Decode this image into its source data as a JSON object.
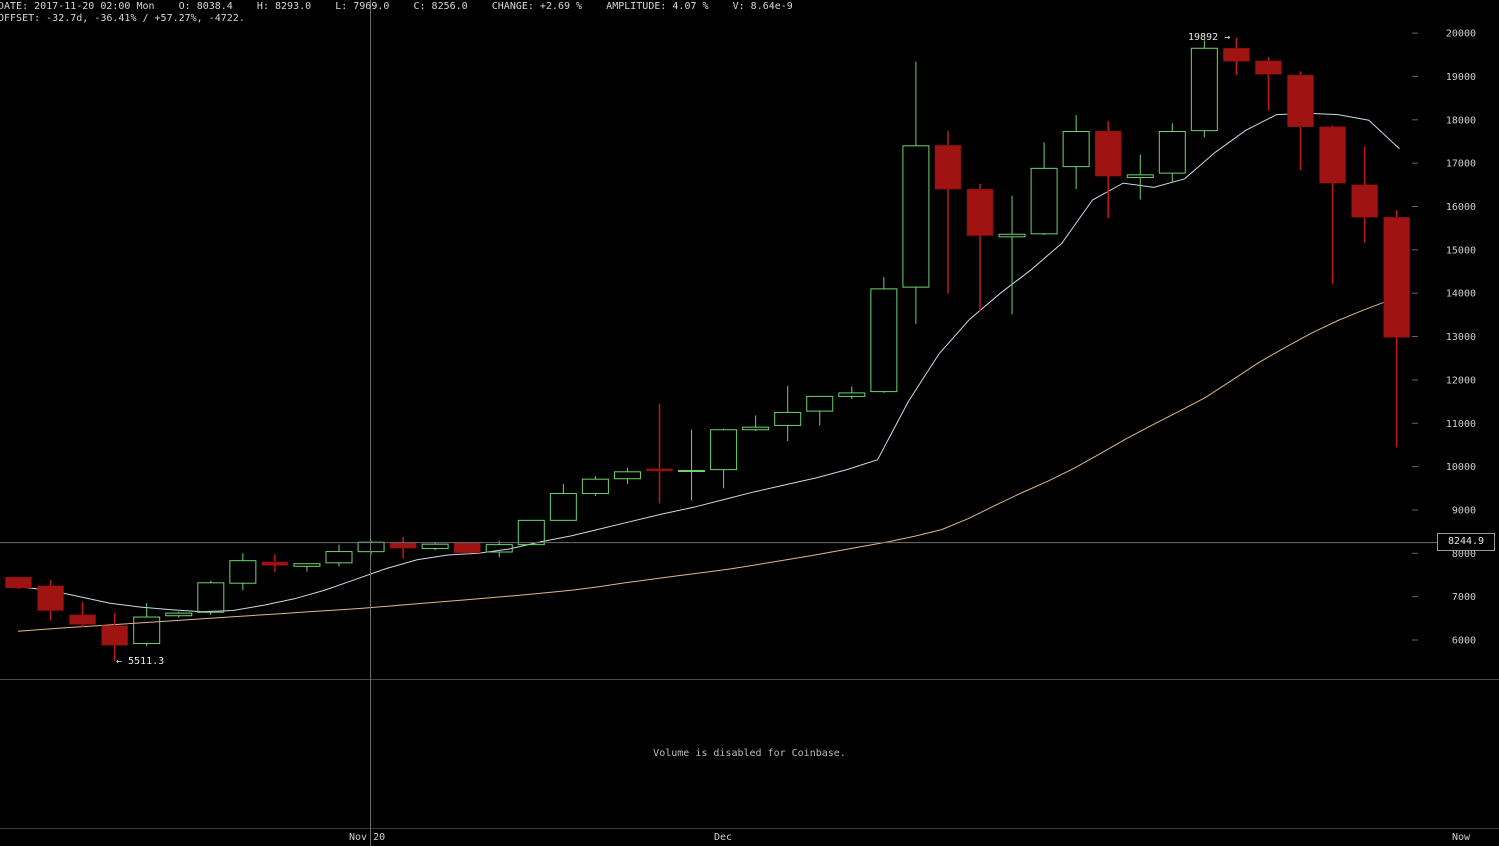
{
  "info": {
    "date": "DATE: 2017-11-20 02:00 Mon",
    "open": "O: 8038.4",
    "high": "H: 8293.0",
    "low": "L: 7969.0",
    "close": "C: 8256.0",
    "change": "CHANGE: +2.69 %",
    "amplitude": "AMPLITUDE: 4.07 %",
    "volume": "V: 8.64e-9",
    "offset": "OFFSET: -32.7d, -36.41% / +57.27%, -4722."
  },
  "crosshair_price": "8244.9",
  "crosshair_price_value": 8244.9,
  "volume_message": "Volume is disabled for Coinbase.",
  "annotations": {
    "high_label": "19892 →",
    "low_label": "← 5511.3"
  },
  "x_axis": {
    "label_nov20": "Nov 20",
    "label_dec": "Dec",
    "label_now": "Now"
  },
  "colors": {
    "background": "#000000",
    "up": "#6fd36f",
    "down": "#a01313",
    "ma_short": "#c8dbe8",
    "ma_long": "#e0b78a",
    "grid": "#555555"
  },
  "chart_data": {
    "type": "candlestick",
    "y_ticks": [
      6000,
      7000,
      8000,
      9000,
      10000,
      11000,
      12000,
      13000,
      14000,
      15000,
      16000,
      17000,
      18000,
      19000,
      20000
    ],
    "y_tick_labels": [
      "6000",
      "7000",
      "8000",
      "9000",
      "10000",
      "11000",
      "12000",
      "13000",
      "14000",
      "15000",
      "16000",
      "17000",
      "18000",
      "19000",
      "20000"
    ],
    "candles": [
      {
        "o": 7450,
        "h": 7450,
        "l": 7180,
        "c": 7200
      },
      {
        "o": 7250,
        "h": 7380,
        "l": 6450,
        "c": 6680
      },
      {
        "o": 6580,
        "h": 6880,
        "l": 6300,
        "c": 6360
      },
      {
        "o": 6330,
        "h": 6620,
        "l": 5511,
        "c": 5880
      },
      {
        "o": 5920,
        "h": 6850,
        "l": 5860,
        "c": 6530
      },
      {
        "o": 6560,
        "h": 6650,
        "l": 6520,
        "c": 6620
      },
      {
        "o": 6640,
        "h": 7370,
        "l": 6580,
        "c": 7320
      },
      {
        "o": 7310,
        "h": 8000,
        "l": 7150,
        "c": 7830
      },
      {
        "o": 7800,
        "h": 7980,
        "l": 7570,
        "c": 7720
      },
      {
        "o": 7700,
        "h": 7770,
        "l": 7580,
        "c": 7760
      },
      {
        "o": 7780,
        "h": 8200,
        "l": 7700,
        "c": 8040
      },
      {
        "o": 8038,
        "h": 8293,
        "l": 7969,
        "c": 8256
      },
      {
        "o": 8240,
        "h": 8380,
        "l": 7880,
        "c": 8120
      },
      {
        "o": 8110,
        "h": 8260,
        "l": 8070,
        "c": 8210
      },
      {
        "o": 8240,
        "h": 8260,
        "l": 7990,
        "c": 8010
      },
      {
        "o": 8030,
        "h": 8290,
        "l": 7910,
        "c": 8200
      },
      {
        "o": 8200,
        "h": 8770,
        "l": 8190,
        "c": 8760
      },
      {
        "o": 8760,
        "h": 9600,
        "l": 8750,
        "c": 9380
      },
      {
        "o": 9380,
        "h": 9780,
        "l": 9320,
        "c": 9710
      },
      {
        "o": 9720,
        "h": 9970,
        "l": 9600,
        "c": 9880
      },
      {
        "o": 9950,
        "h": 11450,
        "l": 9150,
        "c": 9900
      },
      {
        "o": 9900,
        "h": 10850,
        "l": 9220,
        "c": 9910
      },
      {
        "o": 9930,
        "h": 10880,
        "l": 9500,
        "c": 10850
      },
      {
        "o": 10850,
        "h": 11180,
        "l": 10820,
        "c": 10910
      },
      {
        "o": 10950,
        "h": 11860,
        "l": 10590,
        "c": 11250
      },
      {
        "o": 11280,
        "h": 11620,
        "l": 10950,
        "c": 11620
      },
      {
        "o": 11620,
        "h": 11850,
        "l": 11560,
        "c": 11700
      },
      {
        "o": 11730,
        "h": 14370,
        "l": 11700,
        "c": 14100
      },
      {
        "o": 14140,
        "h": 19340,
        "l": 13290,
        "c": 17400
      },
      {
        "o": 17410,
        "h": 17750,
        "l": 13990,
        "c": 16400
      },
      {
        "o": 16400,
        "h": 16520,
        "l": 13580,
        "c": 15330
      },
      {
        "o": 15300,
        "h": 16250,
        "l": 13510,
        "c": 15360
      },
      {
        "o": 15370,
        "h": 17480,
        "l": 15340,
        "c": 16880
      },
      {
        "o": 16920,
        "h": 18110,
        "l": 16400,
        "c": 17730
      },
      {
        "o": 17740,
        "h": 17970,
        "l": 15730,
        "c": 16700
      },
      {
        "o": 16670,
        "h": 17200,
        "l": 16160,
        "c": 16730
      },
      {
        "o": 16770,
        "h": 17920,
        "l": 16570,
        "c": 17730
      },
      {
        "o": 17750,
        "h": 19830,
        "l": 17600,
        "c": 19650
      },
      {
        "o": 19650,
        "h": 19892,
        "l": 19030,
        "c": 19350
      },
      {
        "o": 19360,
        "h": 19450,
        "l": 18220,
        "c": 19050
      },
      {
        "o": 19030,
        "h": 19120,
        "l": 16840,
        "c": 17840
      },
      {
        "o": 17840,
        "h": 17870,
        "l": 14210,
        "c": 16540
      },
      {
        "o": 16500,
        "h": 17380,
        "l": 15160,
        "c": 15750
      },
      {
        "o": 15750,
        "h": 15920,
        "l": 10450,
        "c": 12980
      }
    ],
    "ma_short": [
      7230,
      7150,
      7000,
      6850,
      6760,
      6700,
      6650,
      6680,
      6800,
      6950,
      7150,
      7400,
      7650,
      7850,
      7960,
      8000,
      8100,
      8260,
      8400,
      8570,
      8740,
      8910,
      9060,
      9240,
      9420,
      9580,
      9740,
      9930,
      10160,
      11500,
      12600,
      13400,
      14000,
      14540,
      15150,
      16150,
      16540,
      16440,
      16640,
      17250,
      17760,
      18120,
      18150,
      18120,
      17990,
      17330
    ],
    "ma_long": [
      6200,
      6250,
      6290,
      6330,
      6370,
      6410,
      6450,
      6490,
      6530,
      6570,
      6610,
      6650,
      6690,
      6730,
      6780,
      6830,
      6880,
      6930,
      6980,
      7030,
      7090,
      7150,
      7230,
      7320,
      7400,
      7480,
      7560,
      7640,
      7740,
      7840,
      7940,
      8050,
      8160,
      8270,
      8400,
      8550,
      8800,
      9100,
      9390,
      9660,
      9960,
      10300,
      10650,
      10970,
      11280,
      11600,
      12000,
      12400,
      12750,
      13080,
      13370,
      13620,
      13850
    ]
  }
}
